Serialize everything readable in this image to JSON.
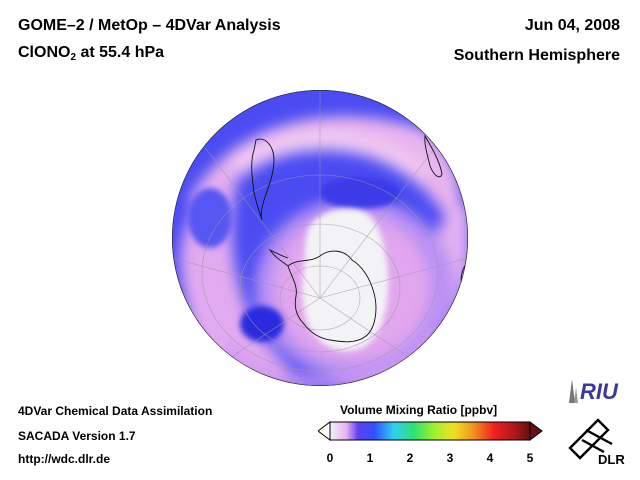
{
  "header": {
    "title_line1": "GOME–2 / MetOp – 4DVar Analysis",
    "species_prefix": "ClONO",
    "species_subscript": "2",
    "species_suffix": " at 55.4 hPa",
    "date": "Jun 04, 2008",
    "region": "Southern Hemisphere"
  },
  "footer": {
    "line1": "4DVar Chemical Data Assimilation",
    "line2": "SACADA Version 1.7",
    "line3": "http://wdc.dlr.de"
  },
  "colorbar": {
    "title": "Volume Mixing Ratio [ppbv]",
    "ticks": [
      "0",
      "1",
      "2",
      "3",
      "4",
      "5"
    ],
    "min": 0,
    "max": 5
  },
  "logos": {
    "riu": "RIU",
    "dlr": "DLR"
  },
  "colors": {
    "low_white": "#f2f2f4",
    "pink": "#e8b8ee",
    "violet": "#c88cf0",
    "blue": "#4848f0",
    "dark_blue": "#2020d8"
  },
  "icons": [
    "riu-logo-icon",
    "dlr-logo-icon",
    "globe-map"
  ]
}
